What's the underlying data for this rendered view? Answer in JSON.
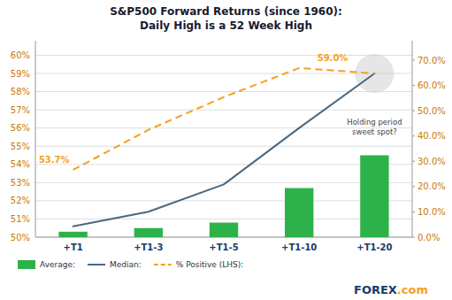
{
  "chart_data": {
    "type": "bar",
    "title": "S&P500 Forward Returns (since 1960):\nDaily High is a 52 Week High",
    "categories": [
      "+T1",
      "+T1-3",
      "+T1-5",
      "+T1-10",
      "+T1-20"
    ],
    "series": [
      {
        "name": "Average:",
        "type": "bar",
        "color": "#2db24a",
        "values": [
          50.3,
          50.5,
          50.8,
          52.7,
          54.5
        ]
      },
      {
        "name": "Median:",
        "type": "line",
        "line_style": "solid",
        "color": "#4a6880",
        "values": [
          50.6,
          51.4,
          52.9,
          56.0,
          59.0
        ]
      },
      {
        "name": "% Positive (LHS):",
        "type": "line",
        "line_style": "dashed",
        "color": "#f5a01e",
        "values": [
          53.7,
          55.9,
          57.7,
          59.3,
          59.0
        ]
      }
    ],
    "ylim": [
      50.0,
      60.8
    ],
    "yticks": [
      {
        "value": 50,
        "label": "50%"
      },
      {
        "value": 51,
        "label": "51%"
      },
      {
        "value": 52,
        "label": "52%"
      },
      {
        "value": 53,
        "label": "53%"
      },
      {
        "value": 54,
        "label": "54%"
      },
      {
        "value": 55,
        "label": "55%"
      },
      {
        "value": 56,
        "label": "56%"
      },
      {
        "value": 57,
        "label": "57%"
      },
      {
        "value": 58,
        "label": "58%"
      },
      {
        "value": 59,
        "label": "59%"
      },
      {
        "value": 60,
        "label": "60%"
      }
    ],
    "y2lim": [
      0.0,
      0.777
    ],
    "y2ticks": [
      {
        "value": 0.0,
        "label": "0.0%"
      },
      {
        "value": 0.1,
        "label": "10.0%"
      },
      {
        "value": 0.2,
        "label": "20.0%"
      },
      {
        "value": 0.3,
        "label": "30.0%"
      },
      {
        "value": 0.4,
        "label": "40.0%"
      },
      {
        "value": 0.5,
        "label": "50.0%"
      },
      {
        "value": 0.6,
        "label": "60.0%"
      },
      {
        "value": 0.7,
        "label": "70.0%"
      }
    ],
    "grid": true,
    "legend": "bottom",
    "annotations": [
      "53.7%",
      "59.0%",
      "Holding period\nsweet spot?",
      "FOREX",
      ".com"
    ]
  }
}
